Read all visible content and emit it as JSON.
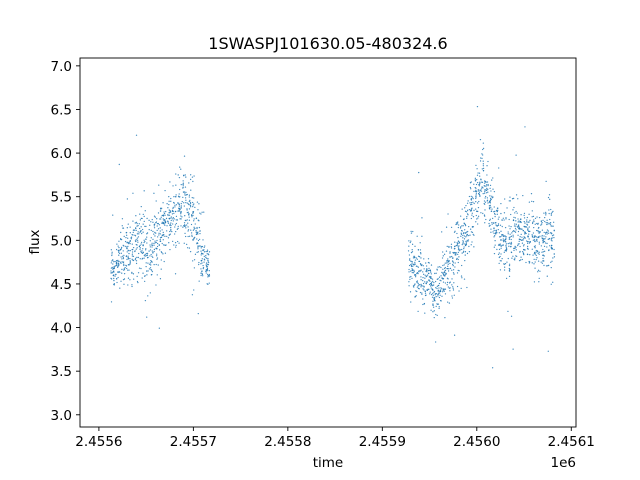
{
  "chart_data": {
    "type": "scatter",
    "title": "1SWASPJ101630.05-480324.6",
    "xlabel": "time",
    "ylabel": "flux",
    "x_offset_label": "1e6",
    "xlim": [
      2.45558,
      2.456105
    ],
    "ylim": [
      2.86,
      7.09
    ],
    "grid": false,
    "point_color": "#1f77b4",
    "x_ticks": [
      {
        "value": 2.4556,
        "label": "2.4556"
      },
      {
        "value": 2.4557,
        "label": "2.4557"
      },
      {
        "value": 2.4558,
        "label": "2.4558"
      },
      {
        "value": 2.4559,
        "label": "2.4559"
      },
      {
        "value": 2.456,
        "label": "2.4560"
      },
      {
        "value": 2.4561,
        "label": "2.4561"
      }
    ],
    "y_ticks": [
      {
        "value": 3.0,
        "label": "3.0"
      },
      {
        "value": 3.5,
        "label": "3.5"
      },
      {
        "value": 4.0,
        "label": "4.0"
      },
      {
        "value": 4.5,
        "label": "4.5"
      },
      {
        "value": 5.0,
        "label": "5.0"
      },
      {
        "value": 5.5,
        "label": "5.5"
      },
      {
        "value": 6.0,
        "label": "6.0"
      },
      {
        "value": 6.5,
        "label": "6.5"
      },
      {
        "value": 7.0,
        "label": "7.0"
      }
    ],
    "series": [
      {
        "x": [
          2.455615,
          2.45562,
          2.455625,
          2.45563,
          2.455635,
          2.45564,
          2.455645,
          2.45565,
          2.455655,
          2.45566,
          2.455665,
          2.45567,
          2.455675,
          2.45568,
          2.455685,
          2.45569,
          2.455695,
          2.4557,
          2.455705,
          2.45571,
          2.455715,
          2.45593,
          2.455935,
          2.45594,
          2.455945,
          2.45595,
          2.455955,
          2.45596,
          2.455965,
          2.45597,
          2.455975,
          2.45598,
          2.455985,
          2.45599,
          2.455995,
          2.456,
          2.456005,
          2.45601,
          2.456015,
          2.45602,
          2.456025,
          2.45603,
          2.456035,
          2.45604,
          2.456045,
          2.45605,
          2.456055,
          2.45606,
          2.456065,
          2.45607,
          2.456075,
          2.45608
        ],
        "y": [
          4.7,
          4.75,
          4.8,
          4.85,
          4.9,
          4.95,
          5.0,
          4.8,
          4.9,
          5.0,
          5.1,
          5.15,
          5.2,
          5.3,
          5.35,
          5.4,
          5.3,
          5.2,
          5.0,
          4.8,
          4.7,
          4.7,
          4.65,
          4.6,
          4.55,
          4.5,
          4.4,
          4.45,
          4.55,
          4.7,
          4.8,
          4.9,
          5.0,
          5.1,
          5.3,
          5.5,
          5.6,
          5.6,
          5.4,
          5.2,
          5.0,
          4.95,
          5.0,
          5.05,
          5.1,
          5.05,
          5.0,
          5.0,
          4.95,
          5.0,
          5.05,
          5.0
        ],
        "spread": [
          0.22,
          0.22,
          0.24,
          0.26,
          0.28,
          0.3,
          0.32,
          0.34,
          0.32,
          0.3,
          0.3,
          0.28,
          0.28,
          0.3,
          0.32,
          0.34,
          0.36,
          0.38,
          0.34,
          0.26,
          0.2,
          0.28,
          0.3,
          0.3,
          0.28,
          0.24,
          0.22,
          0.24,
          0.28,
          0.3,
          0.3,
          0.3,
          0.32,
          0.34,
          0.34,
          0.36,
          0.34,
          0.3,
          0.3,
          0.3,
          0.28,
          0.28,
          0.3,
          0.3,
          0.3,
          0.3,
          0.3,
          0.3,
          0.3,
          0.3,
          0.3,
          0.3
        ]
      }
    ]
  }
}
